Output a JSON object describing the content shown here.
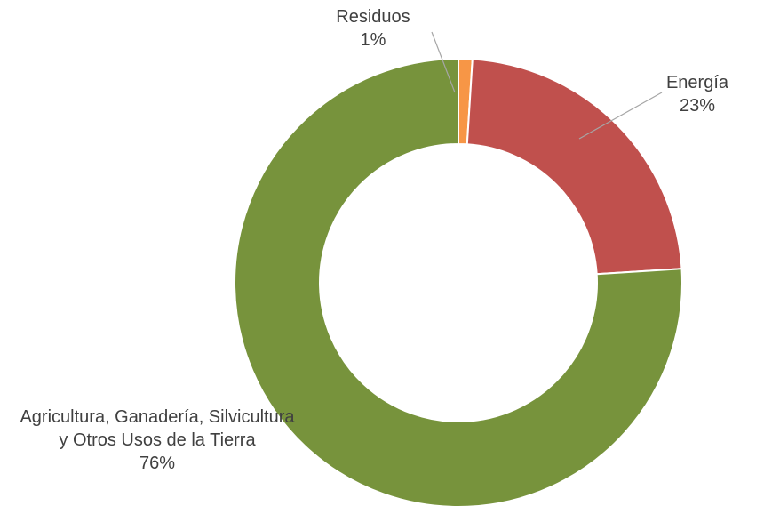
{
  "chart_data": {
    "type": "donut",
    "categories": [
      "Residuos",
      "Energía",
      "Agricultura, Ganadería, Silvicultura y Otros Usos de la Tierra"
    ],
    "values": [
      1,
      23,
      76
    ],
    "value_labels": [
      "1%",
      "23%",
      "76%"
    ],
    "colors": [
      "#f79646",
      "#c0504d",
      "#77933c"
    ]
  }
}
